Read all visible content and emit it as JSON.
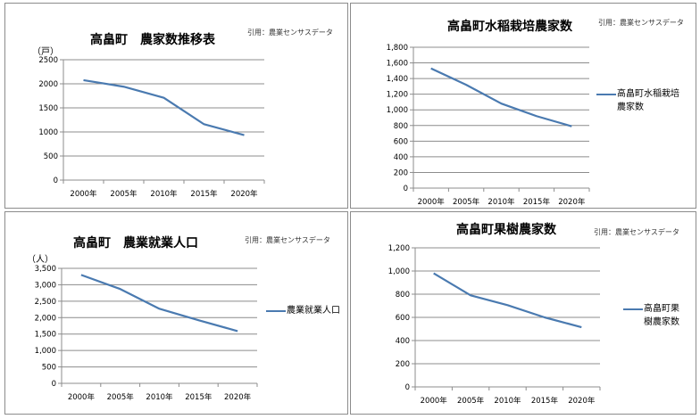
{
  "line_color": "#4a7ab0",
  "chart_data": [
    {
      "type": "line",
      "title": "高畠町　農家数推移表",
      "citation": "引用：農業センサスデータ",
      "ylabel": "（戸）",
      "categories": [
        "2000年",
        "2005年",
        "2010年",
        "2015年",
        "2020年"
      ],
      "values": [
        2075,
        1940,
        1710,
        1160,
        935
      ],
      "ylim": [
        0,
        2500
      ],
      "yticks": [
        "0",
        "500",
        "1000",
        "1500",
        "2000",
        "2500"
      ],
      "grid": true,
      "legend": null
    },
    {
      "type": "line",
      "title": "高畠町水稲栽培農家数",
      "citation": "引用：農業センサスデータ",
      "categories": [
        "2000年",
        "2005年",
        "2010年",
        "2015年",
        "2020年"
      ],
      "series": [
        {
          "name": "高畠町水稲栽培農家数",
          "values": [
            1530,
            1320,
            1080,
            920,
            790
          ]
        }
      ],
      "ylim": [
        0,
        1800
      ],
      "yticks": [
        "0",
        "200",
        "400",
        "600",
        "800",
        "1,000",
        "1,200",
        "1,400",
        "1,600",
        "1,800"
      ],
      "grid": true,
      "legend": "right"
    },
    {
      "type": "line",
      "title": "高畠町　農業就業人口",
      "citation": "引用：農業センサスデータ",
      "ylabel": "（人）",
      "categories": [
        "2000年",
        "2005年",
        "2010年",
        "2015年",
        "2020年"
      ],
      "series": [
        {
          "name": "農業就業人口",
          "values": [
            3300,
            2870,
            2270,
            1920,
            1590
          ]
        }
      ],
      "ylim": [
        0,
        3500
      ],
      "yticks": [
        "0",
        "500",
        "1,000",
        "1,500",
        "2,000",
        "2,500",
        "3,000",
        "3,500"
      ],
      "grid": true,
      "legend": "right"
    },
    {
      "type": "line",
      "title": "高畠町果樹農家数",
      "citation": "引用：農業センサスデータ",
      "categories": [
        "2000年",
        "2005年",
        "2010年",
        "2015年",
        "2020年"
      ],
      "series": [
        {
          "name": "高畠町果樹農家数",
          "values": [
            980,
            790,
            705,
            600,
            515
          ]
        }
      ],
      "ylim": [
        0,
        1200
      ],
      "yticks": [
        "0",
        "200",
        "400",
        "600",
        "800",
        "1,000",
        "1,200"
      ],
      "grid": true,
      "legend": "right"
    }
  ]
}
